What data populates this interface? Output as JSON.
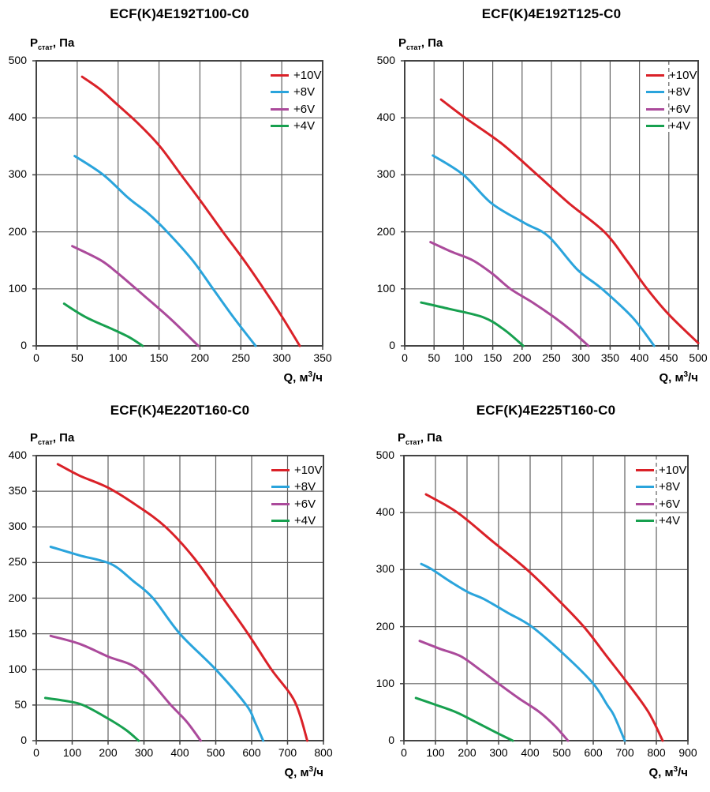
{
  "page": {
    "background": "#ffffff"
  },
  "palette": {
    "red": "#da2128",
    "blue": "#2aa4dc",
    "purple": "#ab4a9b",
    "green": "#17a04f",
    "grid": "#626262",
    "border": "#434343",
    "text": "#000000"
  },
  "legend": {
    "items": [
      {
        "label": "+10V",
        "color": "#da2128"
      },
      {
        "label": "+8V",
        "color": "#2aa4dc"
      },
      {
        "label": "+6V",
        "color": "#ab4a9b"
      },
      {
        "label": "+4V",
        "color": "#17a04f"
      }
    ]
  },
  "axis_labels": {
    "y": {
      "main": "P",
      "sub": "стат",
      "rest": ", Па"
    },
    "x": {
      "main": "Q, м",
      "sup": "3",
      "rest": "/ч"
    }
  },
  "chart_data": [
    {
      "type": "line",
      "title": "ECF(K)4E192T100-C0",
      "xlabel": "Q, м3/ч",
      "ylabel": "Pстат, Па",
      "xlim": [
        0,
        350
      ],
      "x_step": 50,
      "ylim": [
        0,
        500
      ],
      "y_step": 100,
      "grid": true,
      "legend_position": "top-right",
      "dashed_gridline_x": null,
      "series": [
        {
          "name": "+10V",
          "color": "#da2128",
          "points": [
            [
              56,
              472
            ],
            [
              78,
              450
            ],
            [
              100,
              422
            ],
            [
              126,
              388
            ],
            [
              151,
              350
            ],
            [
              176,
              302
            ],
            [
              203,
              250
            ],
            [
              228,
              200
            ],
            [
              254,
              150
            ],
            [
              278,
              100
            ],
            [
              300,
              52
            ],
            [
              322,
              0
            ]
          ]
        },
        {
          "name": "+8V",
          "color": "#2aa4dc",
          "points": [
            [
              47,
              333
            ],
            [
              82,
              300
            ],
            [
              112,
              260
            ],
            [
              137,
              232
            ],
            [
              160,
              200
            ],
            [
              191,
              150
            ],
            [
              216,
              100
            ],
            [
              241,
              50
            ],
            [
              268,
              0
            ]
          ]
        },
        {
          "name": "+6V",
          "color": "#ab4a9b",
          "points": [
            [
              44,
              175
            ],
            [
              79,
              150
            ],
            [
              100,
              127
            ],
            [
              122,
              100
            ],
            [
              162,
              50
            ],
            [
              198,
              0
            ]
          ]
        },
        {
          "name": "+4V",
          "color": "#17a04f",
          "points": [
            [
              34,
              74
            ],
            [
              61,
              50
            ],
            [
              95,
              28
            ],
            [
              115,
              14
            ],
            [
              130,
              0
            ]
          ]
        }
      ]
    },
    {
      "type": "line",
      "title": "ECF(K)4E192T125-C0",
      "xlabel": "Q, м3/ч",
      "ylabel": "Pстат, Па",
      "xlim": [
        0,
        500
      ],
      "x_step": 50,
      "ylim": [
        0,
        500
      ],
      "y_step": 100,
      "grid": true,
      "legend_position": "top-right",
      "dashed_gridline_x": 450,
      "series": [
        {
          "name": "+10V",
          "color": "#da2128",
          "points": [
            [
              62,
              432
            ],
            [
              103,
              400
            ],
            [
              165,
              355
            ],
            [
              226,
              300
            ],
            [
              280,
              250
            ],
            [
              340,
              200
            ],
            [
              378,
              150
            ],
            [
              413,
              100
            ],
            [
              450,
              55
            ],
            [
              500,
              5
            ]
          ]
        },
        {
          "name": "+8V",
          "color": "#2aa4dc",
          "points": [
            [
              48,
              334
            ],
            [
              100,
              300
            ],
            [
              148,
              250
            ],
            [
              205,
              215
            ],
            [
              245,
              192
            ],
            [
              294,
              134
            ],
            [
              336,
              100
            ],
            [
              388,
              50
            ],
            [
              425,
              0
            ]
          ]
        },
        {
          "name": "+6V",
          "color": "#ab4a9b",
          "points": [
            [
              44,
              182
            ],
            [
              80,
              165
            ],
            [
              116,
              150
            ],
            [
              150,
              126
            ],
            [
              180,
              100
            ],
            [
              218,
              76
            ],
            [
              255,
              50
            ],
            [
              285,
              26
            ],
            [
              313,
              0
            ]
          ]
        },
        {
          "name": "+4V",
          "color": "#17a04f",
          "points": [
            [
              28,
              76
            ],
            [
              75,
              65
            ],
            [
              134,
              50
            ],
            [
              170,
              28
            ],
            [
              202,
              0
            ]
          ]
        }
      ]
    },
    {
      "type": "line",
      "title": "ECF(K)4E220T160-C0",
      "xlabel": "Q, м3/ч",
      "ylabel": "Pстат, Па",
      "xlim": [
        0,
        800
      ],
      "x_step": 100,
      "ylim": [
        0,
        400
      ],
      "y_step": 50,
      "grid": true,
      "legend_position": "top-right",
      "dashed_gridline_x": null,
      "series": [
        {
          "name": "+10V",
          "color": "#da2128",
          "points": [
            [
              60,
              388
            ],
            [
              120,
              372
            ],
            [
              200,
              355
            ],
            [
              280,
              330
            ],
            [
              360,
              300
            ],
            [
              440,
              256
            ],
            [
              520,
              200
            ],
            [
              590,
              150
            ],
            [
              655,
              100
            ],
            [
              720,
              55
            ],
            [
              755,
              0
            ]
          ]
        },
        {
          "name": "+8V",
          "color": "#2aa4dc",
          "points": [
            [
              40,
              272
            ],
            [
              120,
              260
            ],
            [
              208,
              248
            ],
            [
              270,
              224
            ],
            [
              325,
              200
            ],
            [
              400,
              150
            ],
            [
              500,
              100
            ],
            [
              585,
              50
            ],
            [
              610,
              25
            ],
            [
              632,
              0
            ]
          ]
        },
        {
          "name": "+6V",
          "color": "#ab4a9b",
          "points": [
            [
              40,
              147
            ],
            [
              120,
              136
            ],
            [
              200,
              118
            ],
            [
              285,
              100
            ],
            [
              375,
              50
            ],
            [
              420,
              26
            ],
            [
              458,
              0
            ]
          ]
        },
        {
          "name": "+4V",
          "color": "#17a04f",
          "points": [
            [
              25,
              60
            ],
            [
              80,
              56
            ],
            [
              130,
              50
            ],
            [
              200,
              31
            ],
            [
              250,
              15
            ],
            [
              285,
              0
            ]
          ]
        }
      ]
    },
    {
      "type": "line",
      "title": "ECF(K)4E225T160-C0",
      "xlabel": "Q, м3/ч",
      "ylabel": "Pстат, Па",
      "xlim": [
        0,
        900
      ],
      "x_step": 100,
      "ylim": [
        0,
        500
      ],
      "y_step": 100,
      "grid": true,
      "legend_position": "top-right",
      "dashed_gridline_x": 800,
      "series": [
        {
          "name": "+10V",
          "color": "#da2128",
          "points": [
            [
              70,
              432
            ],
            [
              170,
              400
            ],
            [
              280,
              350
            ],
            [
              390,
              300
            ],
            [
              480,
              252
            ],
            [
              570,
              200
            ],
            [
              640,
              150
            ],
            [
              710,
              100
            ],
            [
              775,
              50
            ],
            [
              820,
              0
            ]
          ]
        },
        {
          "name": "+8V",
          "color": "#2aa4dc",
          "points": [
            [
              55,
              310
            ],
            [
              90,
              300
            ],
            [
              150,
              278
            ],
            [
              205,
              260
            ],
            [
              255,
              248
            ],
            [
              330,
              224
            ],
            [
              405,
              200
            ],
            [
              510,
              150
            ],
            [
              600,
              100
            ],
            [
              645,
              62
            ],
            [
              665,
              45
            ],
            [
              700,
              0
            ]
          ]
        },
        {
          "name": "+6V",
          "color": "#ab4a9b",
          "points": [
            [
              50,
              175
            ],
            [
              115,
              161
            ],
            [
              180,
              148
            ],
            [
              240,
              125
            ],
            [
              300,
              100
            ],
            [
              365,
              74
            ],
            [
              430,
              50
            ],
            [
              480,
              25
            ],
            [
              520,
              0
            ]
          ]
        },
        {
          "name": "+4V",
          "color": "#17a04f",
          "points": [
            [
              38,
              75
            ],
            [
              100,
              63
            ],
            [
              165,
              50
            ],
            [
              230,
              32
            ],
            [
              290,
              15
            ],
            [
              345,
              0
            ]
          ]
        }
      ]
    }
  ]
}
